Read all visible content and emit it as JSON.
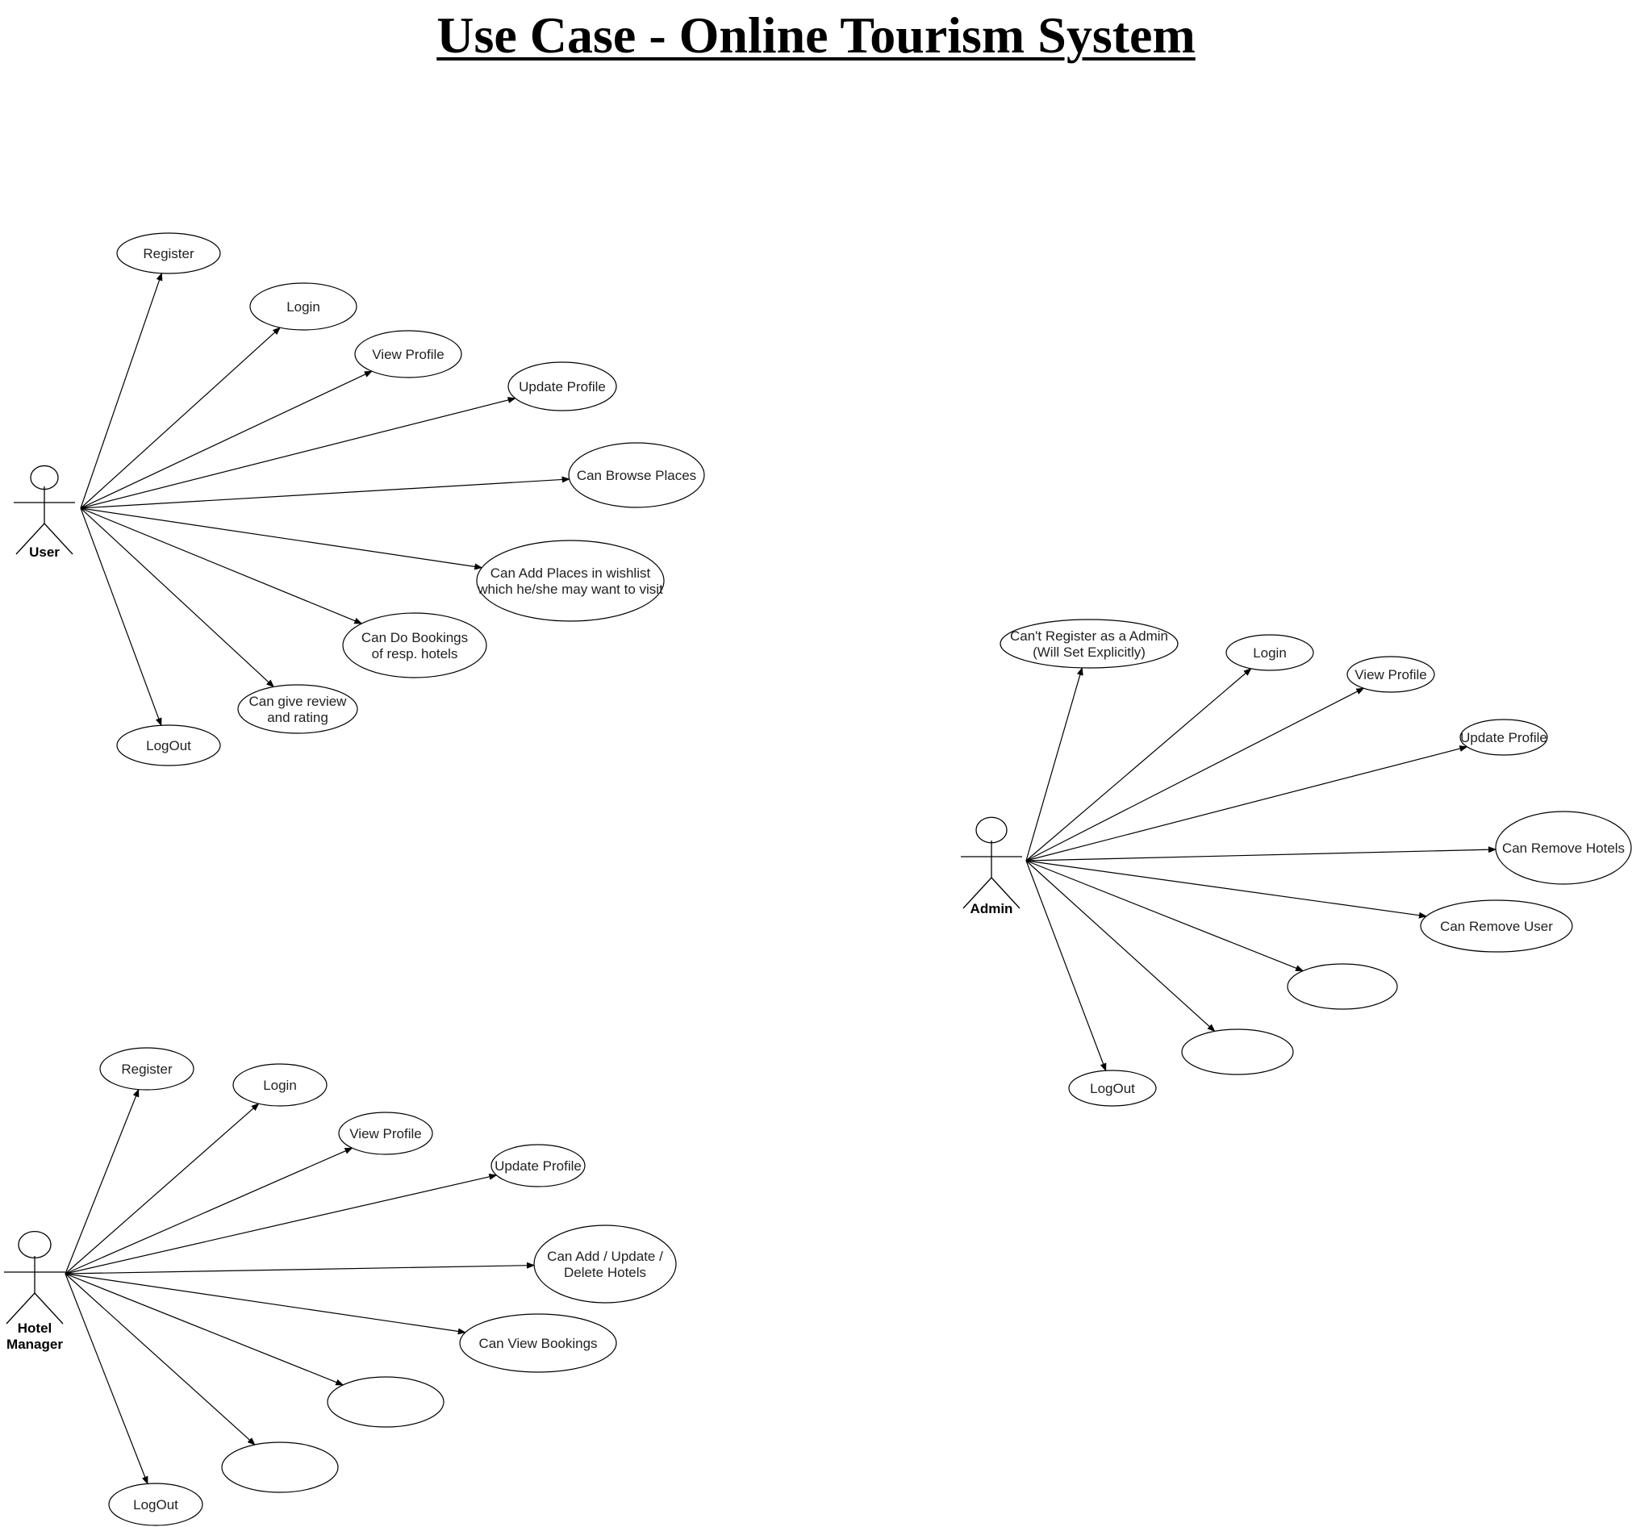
{
  "title": "Use Case - Online Tourism System",
  "actors": {
    "user": {
      "label": [
        "User"
      ],
      "use_cases": [
        [
          "Register"
        ],
        [
          "Login"
        ],
        [
          "View Profile"
        ],
        [
          "Update Profile"
        ],
        [
          "Can Browse Places"
        ],
        [
          "Can Add Places in wishlist",
          "which he/she may want to visit"
        ],
        [
          "Can Do Bookings",
          "of resp. hotels"
        ],
        [
          "Can give review",
          "and rating"
        ],
        [
          "LogOut"
        ]
      ]
    },
    "admin": {
      "label": [
        "Admin"
      ],
      "use_cases": [
        [
          "Can't Register as a Admin",
          "(Will Set Explicitly)"
        ],
        [
          "Login"
        ],
        [
          "View Profile"
        ],
        [
          "Update Profile"
        ],
        [
          "Can Remove Hotels"
        ],
        [
          "Can Remove User"
        ],
        [],
        [],
        [
          "LogOut"
        ]
      ]
    },
    "hotel_manager": {
      "label": [
        "Hotel",
        "Manager"
      ],
      "use_cases": [
        [
          "Register"
        ],
        [
          "Login"
        ],
        [
          "View Profile"
        ],
        [
          "Update Profile"
        ],
        [
          "Can Add / Update /",
          "Delete Hotels"
        ],
        [
          "Can View Bookings"
        ],
        [],
        [],
        [
          "LogOut"
        ]
      ]
    }
  }
}
